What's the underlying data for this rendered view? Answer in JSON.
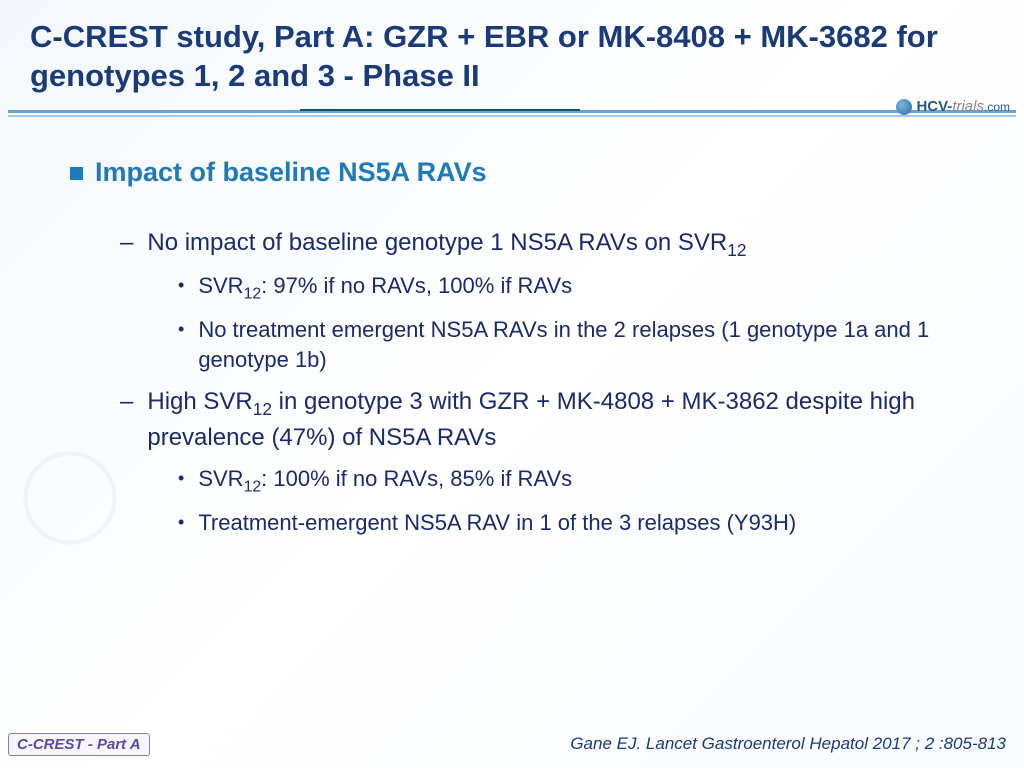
{
  "colors": {
    "title": "#1a3a7a",
    "heading": "#1e7bb8",
    "body": "#1a2a6a",
    "badge": "#5a4aa8",
    "citation": "#1a3a7a"
  },
  "title": "C-CREST study, Part A: GZR + EBR or MK-8408 + MK-3682 for genotypes 1, 2 and 3 - Phase II",
  "logo": {
    "part1": "HCV-",
    "part2": "trials",
    "part3": ".com"
  },
  "heading": "Impact of baseline NS5A RAVs",
  "items": [
    {
      "level": 1,
      "pre": "No impact of baseline genotype 1 NS5A RAVs on SVR",
      "sub": "12",
      "post": ""
    },
    {
      "level": 2,
      "pre": "SVR",
      "sub": "12",
      "post": ": 97% if no RAVs, 100% if RAVs"
    },
    {
      "level": 2,
      "pre": "No treatment emergent NS5A RAVs in the 2 relapses (1 genotype 1a and 1 genotype 1b)",
      "sub": "",
      "post": ""
    },
    {
      "level": 1,
      "pre": "High SVR",
      "sub": "12",
      "post": " in genotype 3 with GZR + MK-4808 + MK-3862 despite high prevalence (47%) of NS5A RAVs"
    },
    {
      "level": 2,
      "pre": "SVR",
      "sub": "12",
      "post": ": 100% if no RAVs, 85% if RAVs"
    },
    {
      "level": 2,
      "pre": "Treatment-emergent NS5A RAV in 1 of the 3 relapses (Y93H)",
      "sub": "",
      "post": ""
    }
  ],
  "badge": "C-CREST - Part A",
  "citation": "Gane EJ. Lancet Gastroenterol Hepatol 2017 ; 2 :805-813"
}
